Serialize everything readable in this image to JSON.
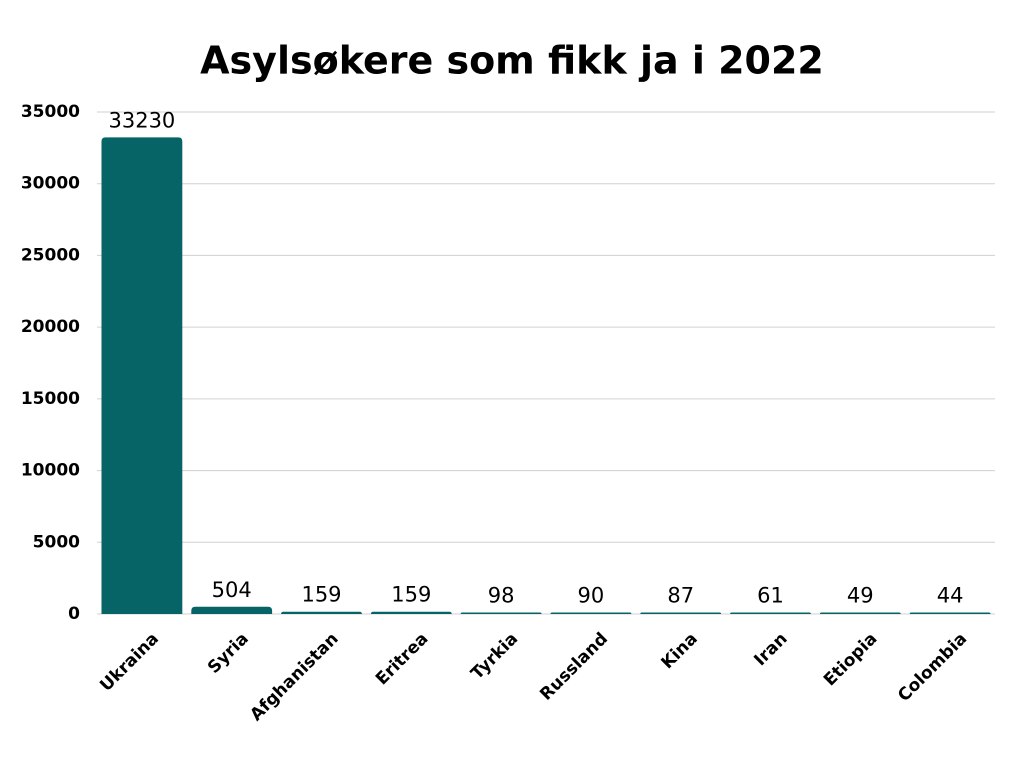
{
  "chart_data": {
    "type": "bar",
    "title": "Asylsøkere som fikk ja i 2022",
    "categories": [
      "Ukraina",
      "Syria",
      "Afghanistan",
      "Eritrea",
      "Tyrkia",
      "Russland",
      "Kina",
      "Iran",
      "Etiopia",
      "Colombia"
    ],
    "values": [
      33230,
      504,
      159,
      159,
      98,
      90,
      87,
      61,
      49,
      44
    ],
    "color": "#066466",
    "ylim": [
      0,
      35000
    ],
    "yticks": [
      0,
      5000,
      10000,
      15000,
      20000,
      25000,
      30000,
      35000
    ],
    "grid": true
  }
}
